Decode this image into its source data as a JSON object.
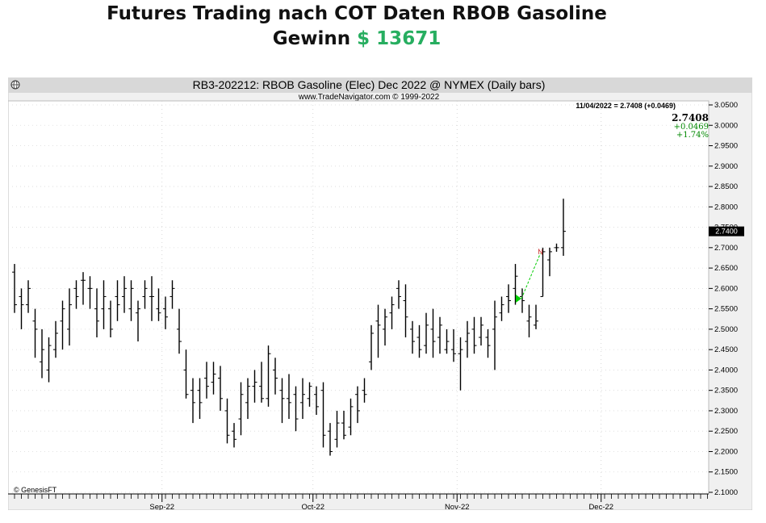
{
  "header": {
    "title": "Futures Trading nach COT Daten RBOB Gasoline",
    "gain_label": "Gewinn",
    "gain_value": "$ 13671"
  },
  "chart_header": {
    "title": "RB3-202212:  RBOB Gasoline (Elec) Dec 2022 @ NYMEX  (Daily bars)",
    "subtitle": "www.TradeNavigator.com © 1999-2022",
    "info_line": "11/04/2022 = 2.7408 (+0.0469)",
    "last_price": "2.7408",
    "change": "+0.0469",
    "change_pct": "+1.74%",
    "price_tag": "2.7400",
    "watermark": "© GenesisFT"
  },
  "colors": {
    "bar": "#000000",
    "panel_bg": "#f0f0f0",
    "gain_green": "#27ae60",
    "change_green": "#008800",
    "signal_green": "#00cc00",
    "signal_red": "#cc3333"
  },
  "chart_data": {
    "type": "bar",
    "style": "ohlc",
    "ylim": [
      2.1,
      3.05
    ],
    "y_ticks": [
      "3.0500",
      "3.0000",
      "2.9500",
      "2.9000",
      "2.8500",
      "2.8000",
      "2.7500",
      "2.7000",
      "2.6500",
      "2.6000",
      "2.5500",
      "2.5000",
      "2.4500",
      "2.4000",
      "2.3500",
      "2.3000",
      "2.2500",
      "2.2000",
      "2.1500",
      "2.1000"
    ],
    "x_month_labels": [
      {
        "label": "Sep-22",
        "index": 21.5
      },
      {
        "label": "Oct-22",
        "index": 43.5
      },
      {
        "label": "Nov-22",
        "index": 64.5
      },
      {
        "label": "Dec-22",
        "index": 85.5
      }
    ],
    "bars": [
      [
        2.64,
        2.66,
        2.54,
        2.56
      ],
      [
        2.58,
        2.6,
        2.5,
        2.56
      ],
      [
        2.56,
        2.62,
        2.54,
        2.6
      ],
      [
        2.52,
        2.55,
        2.43,
        2.5
      ],
      [
        2.42,
        2.5,
        2.38,
        2.45
      ],
      [
        2.4,
        2.48,
        2.37,
        2.46
      ],
      [
        2.45,
        2.52,
        2.43,
        2.49
      ],
      [
        2.52,
        2.57,
        2.45,
        2.55
      ],
      [
        2.5,
        2.6,
        2.46,
        2.56
      ],
      [
        2.6,
        2.62,
        2.55,
        2.58
      ],
      [
        2.62,
        2.64,
        2.56,
        2.62
      ],
      [
        2.6,
        2.63,
        2.55,
        2.6
      ],
      [
        2.55,
        2.6,
        2.48,
        2.52
      ],
      [
        2.55,
        2.62,
        2.5,
        2.58
      ],
      [
        2.55,
        2.57,
        2.48,
        2.5
      ],
      [
        2.58,
        2.62,
        2.52,
        2.56
      ],
      [
        2.58,
        2.63,
        2.54,
        2.6
      ],
      [
        2.55,
        2.62,
        2.52,
        2.6
      ],
      [
        2.54,
        2.57,
        2.47,
        2.55
      ],
      [
        2.58,
        2.62,
        2.55,
        2.6
      ],
      [
        2.58,
        2.63,
        2.52,
        2.58
      ],
      [
        2.55,
        2.6,
        2.52,
        2.54
      ],
      [
        2.55,
        2.58,
        2.5,
        2.53
      ],
      [
        2.58,
        2.62,
        2.55,
        2.6
      ],
      [
        2.5,
        2.55,
        2.44,
        2.47
      ],
      [
        2.4,
        2.45,
        2.33,
        2.34
      ],
      [
        2.35,
        2.38,
        2.27,
        2.32
      ],
      [
        2.35,
        2.38,
        2.28,
        2.32
      ],
      [
        2.38,
        2.42,
        2.33,
        2.36
      ],
      [
        2.37,
        2.42,
        2.34,
        2.39
      ],
      [
        2.38,
        2.41,
        2.3,
        2.33
      ],
      [
        2.3,
        2.33,
        2.22,
        2.24
      ],
      [
        2.25,
        2.27,
        2.21,
        2.23
      ],
      [
        2.28,
        2.37,
        2.24,
        2.34
      ],
      [
        2.32,
        2.38,
        2.28,
        2.36
      ],
      [
        2.36,
        2.4,
        2.32,
        2.37
      ],
      [
        2.36,
        2.42,
        2.32,
        2.33
      ],
      [
        2.33,
        2.46,
        2.31,
        2.44
      ],
      [
        2.4,
        2.43,
        2.34,
        2.38
      ],
      [
        2.35,
        2.38,
        2.27,
        2.33
      ],
      [
        2.33,
        2.39,
        2.28,
        2.32
      ],
      [
        2.34,
        2.36,
        2.25,
        2.28
      ],
      [
        2.32,
        2.38,
        2.28,
        2.34
      ],
      [
        2.33,
        2.37,
        2.31,
        2.36
      ],
      [
        2.34,
        2.36,
        2.29,
        2.31
      ],
      [
        2.35,
        2.37,
        2.21,
        2.24
      ],
      [
        2.25,
        2.27,
        2.19,
        2.2
      ],
      [
        2.23,
        2.3,
        2.21,
        2.27
      ],
      [
        2.27,
        2.3,
        2.23,
        2.24
      ],
      [
        2.26,
        2.33,
        2.24,
        2.31
      ],
      [
        2.34,
        2.36,
        2.27,
        2.3
      ],
      [
        2.35,
        2.38,
        2.32,
        2.34
      ],
      [
        2.42,
        2.51,
        2.4,
        2.49
      ],
      [
        2.52,
        2.56,
        2.43,
        2.51
      ],
      [
        2.5,
        2.55,
        2.46,
        2.53
      ],
      [
        2.54,
        2.58,
        2.5,
        2.56
      ],
      [
        2.6,
        2.62,
        2.55,
        2.58
      ],
      [
        2.57,
        2.61,
        2.48,
        2.53
      ],
      [
        2.5,
        2.52,
        2.44,
        2.47
      ],
      [
        2.48,
        2.51,
        2.43,
        2.45
      ],
      [
        2.46,
        2.54,
        2.44,
        2.51
      ],
      [
        2.5,
        2.55,
        2.43,
        2.47
      ],
      [
        2.48,
        2.53,
        2.44,
        2.51
      ],
      [
        2.45,
        2.5,
        2.44,
        2.47
      ],
      [
        2.45,
        2.5,
        2.42,
        2.44
      ],
      [
        2.44,
        2.48,
        2.35,
        2.45
      ],
      [
        2.47,
        2.52,
        2.43,
        2.49
      ],
      [
        2.5,
        2.53,
        2.44,
        2.46
      ],
      [
        2.48,
        2.53,
        2.46,
        2.51
      ],
      [
        2.48,
        2.5,
        2.43,
        2.46
      ],
      [
        2.5,
        2.57,
        2.4,
        2.53
      ],
      [
        2.54,
        2.58,
        2.52,
        2.56
      ],
      [
        2.58,
        2.61,
        2.54,
        2.57
      ],
      [
        2.6,
        2.66,
        2.56,
        2.63
      ],
      [
        2.58,
        2.6,
        2.54,
        2.57
      ],
      [
        2.52,
        2.56,
        2.48,
        2.53
      ],
      [
        2.51,
        2.56,
        2.5,
        2.52
      ],
      [
        2.58,
        2.7,
        2.58,
        2.69
      ],
      [
        2.67,
        2.7,
        2.63,
        2.69
      ],
      [
        2.7,
        2.71,
        2.69,
        2.7
      ],
      [
        2.7,
        2.82,
        2.68,
        2.74
      ]
    ],
    "signals": [
      {
        "type": "buy",
        "index": 74,
        "price": 2.575
      },
      {
        "type": "exit",
        "index": 77,
        "price": 2.69
      }
    ]
  }
}
